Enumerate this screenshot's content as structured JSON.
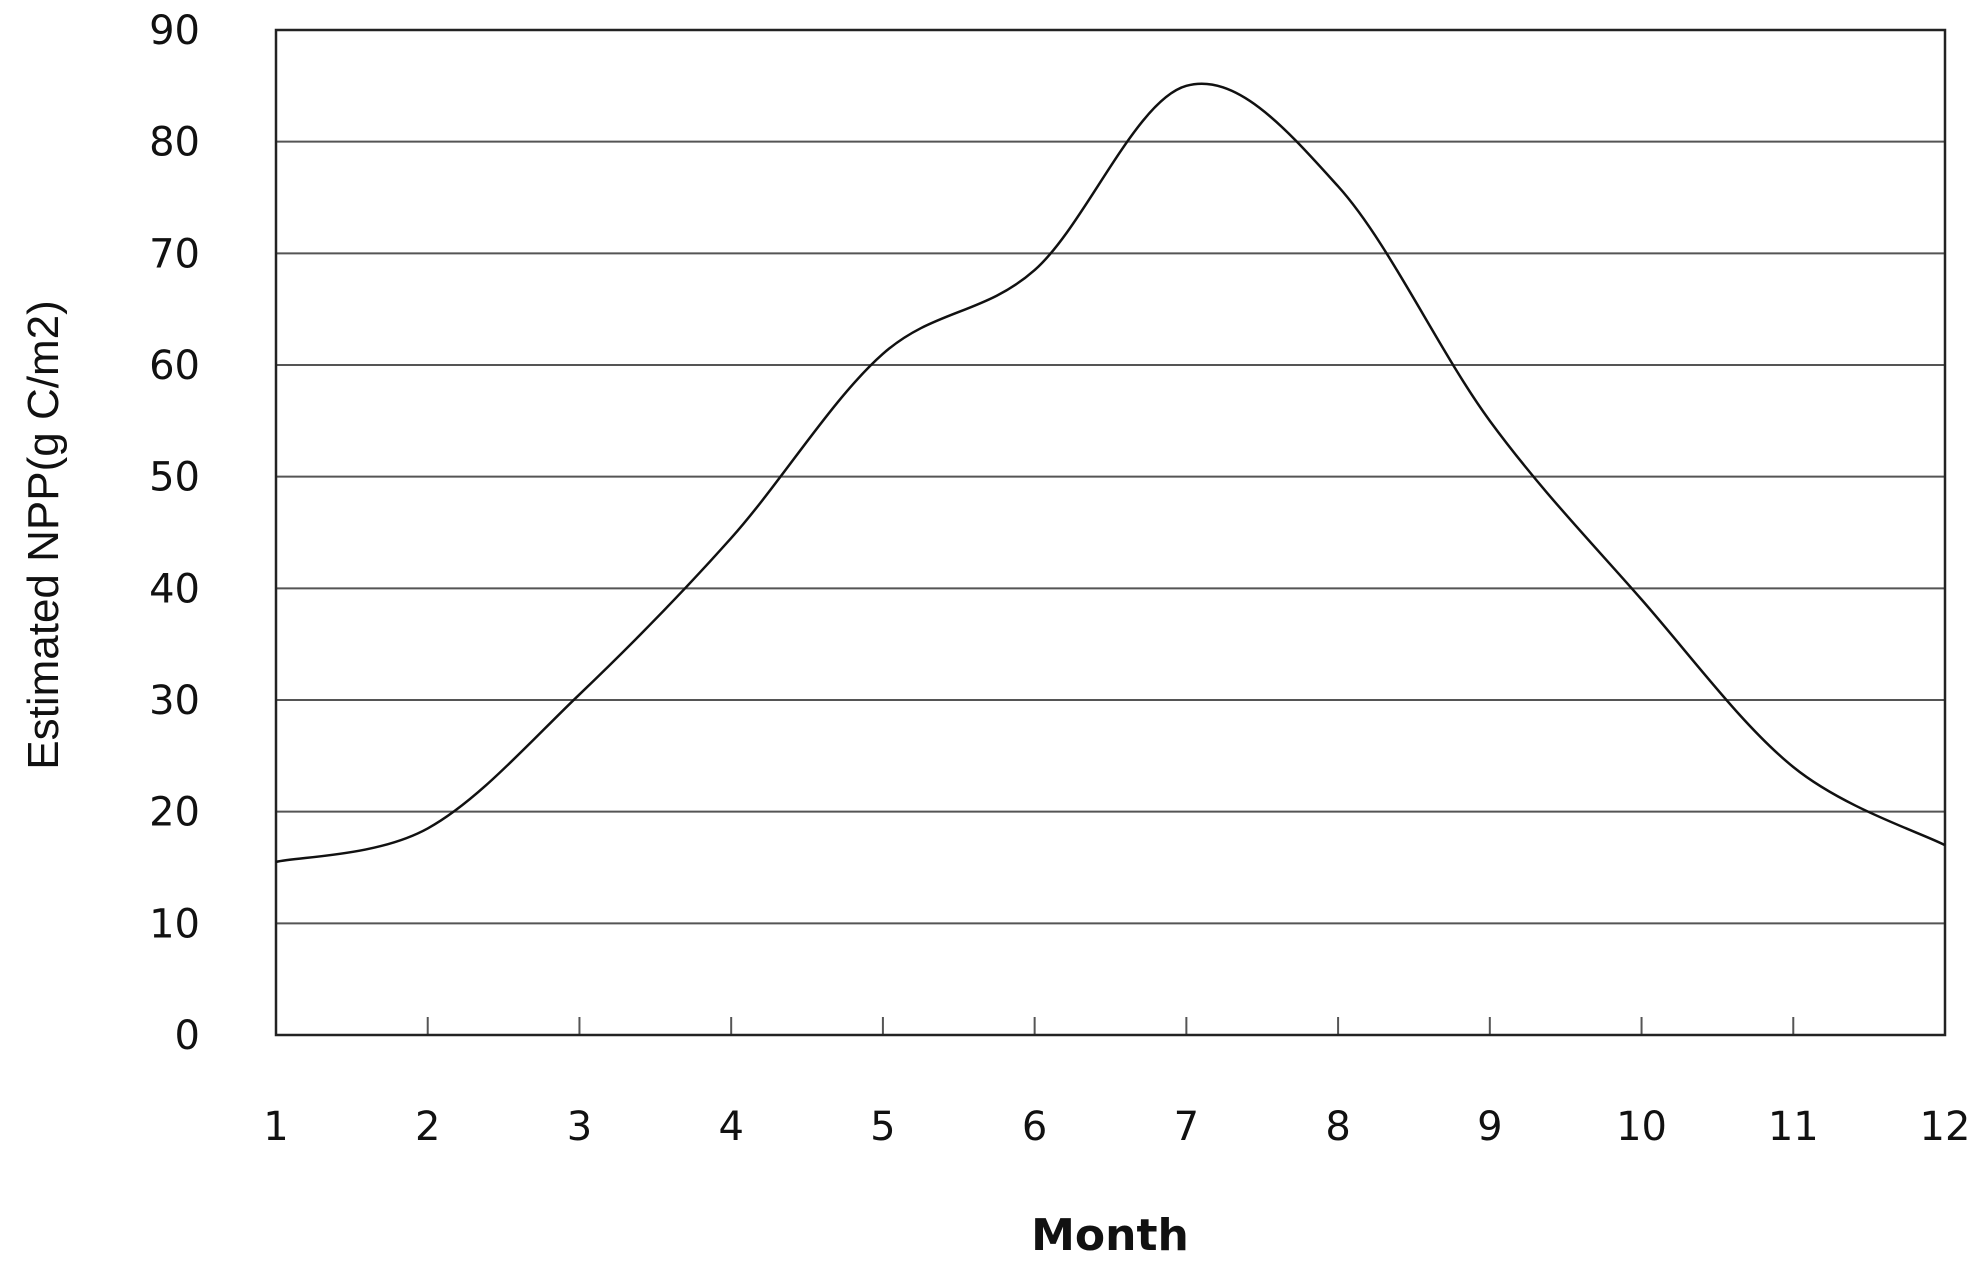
{
  "chart_data": {
    "type": "line",
    "title": "",
    "xlabel": "Month",
    "ylabel": "Estimated NPP(g C/m2)",
    "x": [
      1,
      2,
      3,
      4,
      5,
      6,
      7,
      8,
      9,
      10,
      11,
      12
    ],
    "x_tick_labels": [
      "1",
      "2",
      "3",
      "4",
      "5",
      "6",
      "7",
      "8",
      "9",
      "10",
      "11",
      "12"
    ],
    "y_ticks": [
      0,
      10,
      20,
      30,
      40,
      50,
      60,
      70,
      80,
      90
    ],
    "y_tick_labels": [
      "0",
      "10",
      "20",
      "30",
      "40",
      "50",
      "60",
      "70",
      "80",
      "90"
    ],
    "xlim": [
      1,
      12
    ],
    "ylim": [
      0,
      90
    ],
    "grid": "horizontal",
    "legend": "none",
    "line_color": "#111111",
    "series": [
      {
        "values": [
          15.5,
          18.5,
          30.5,
          44.5,
          61,
          68.5,
          85,
          76,
          55,
          39,
          24,
          17
        ]
      }
    ]
  }
}
